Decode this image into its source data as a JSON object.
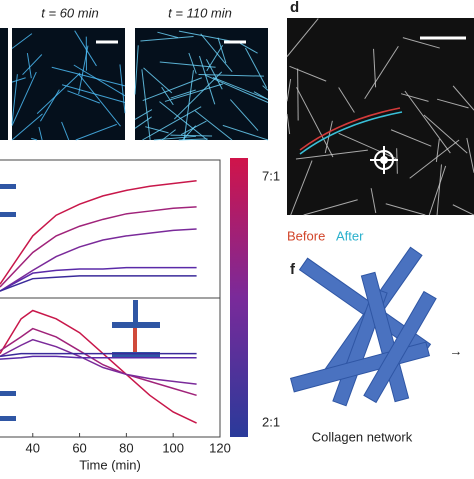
{
  "panels": {
    "image_labels": [
      "t = 60 min",
      "t = 110 min"
    ],
    "d": {
      "label": "d",
      "legend": [
        "Before",
        "After"
      ]
    },
    "colorbar": {
      "top": "7:1",
      "bottom": "2:1"
    },
    "f": {
      "label": "f",
      "caption": "Collagen network",
      "arrow": "→"
    }
  },
  "chart_data": [
    {
      "type": "line",
      "x": [
        26,
        40,
        50,
        60,
        70,
        80,
        90,
        100,
        110
      ],
      "xlim": [
        26,
        120
      ],
      "ylim": [
        0,
        1
      ],
      "series": [
        {
          "color": "#c8174a",
          "values": [
            0.1,
            0.45,
            0.6,
            0.68,
            0.74,
            0.78,
            0.81,
            0.83,
            0.85
          ]
        },
        {
          "color": "#a0237a",
          "values": [
            0.08,
            0.33,
            0.45,
            0.52,
            0.57,
            0.61,
            0.63,
            0.65,
            0.66
          ]
        },
        {
          "color": "#7a2a9a",
          "values": [
            0.05,
            0.2,
            0.3,
            0.37,
            0.42,
            0.45,
            0.47,
            0.49,
            0.5
          ]
        },
        {
          "color": "#5a2aa8",
          "values": [
            0.05,
            0.18,
            0.2,
            0.21,
            0.21,
            0.22,
            0.22,
            0.22,
            0.22
          ]
        },
        {
          "color": "#3a2a9a",
          "values": [
            0.05,
            0.14,
            0.15,
            0.16,
            0.16,
            0.16,
            0.16,
            0.16,
            0.16
          ]
        }
      ]
    },
    {
      "type": "line",
      "x": [
        26,
        35,
        40,
        50,
        60,
        70,
        80,
        90,
        100,
        110
      ],
      "xlim": [
        26,
        120
      ],
      "ylim": [
        0,
        1
      ],
      "xticks": [
        40,
        60,
        80,
        100,
        120
      ],
      "xlabel": "Time (min)",
      "series": [
        {
          "color": "#c8174a",
          "values": [
            0.6,
            0.85,
            0.91,
            0.85,
            0.75,
            0.6,
            0.45,
            0.3,
            0.18,
            0.1
          ]
        },
        {
          "color": "#a0237a",
          "values": [
            0.62,
            0.72,
            0.78,
            0.72,
            0.62,
            0.52,
            0.45,
            0.4,
            0.35,
            0.3
          ]
        },
        {
          "color": "#7a2a9a",
          "values": [
            0.58,
            0.66,
            0.7,
            0.65,
            0.58,
            0.5,
            0.45,
            0.42,
            0.4,
            0.38
          ]
        },
        {
          "color": "#5a2aa8",
          "values": [
            0.56,
            0.57,
            0.58,
            0.58,
            0.57,
            0.57,
            0.57,
            0.57,
            0.57,
            0.57
          ]
        },
        {
          "color": "#3a2a9a",
          "values": [
            0.58,
            0.6,
            0.6,
            0.6,
            0.6,
            0.6,
            0.6,
            0.6,
            0.6,
            0.6
          ]
        }
      ]
    }
  ]
}
